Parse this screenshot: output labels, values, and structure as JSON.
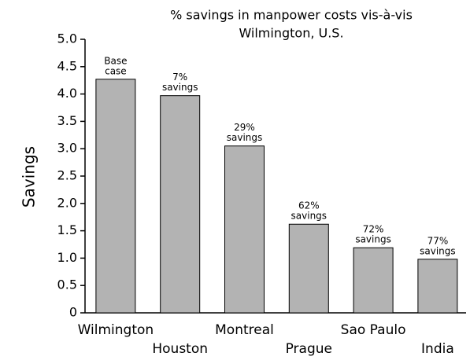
{
  "chart_data": {
    "type": "bar",
    "title": [
      "% savings in manpower costs vis-à-vis",
      "Wilmington, U.S."
    ],
    "y_label": "Savings",
    "categories": [
      "Wilmington",
      "Houston",
      "Montreal",
      "Prague",
      "Sao Paulo",
      "India"
    ],
    "values": [
      4.27,
      3.97,
      3.05,
      1.62,
      1.19,
      0.98
    ],
    "annotations": [
      [
        "Base",
        "case"
      ],
      [
        "7%",
        "savings"
      ],
      [
        "29%",
        "savings"
      ],
      [
        "62%",
        "savings"
      ],
      [
        "72%",
        "savings"
      ],
      [
        "77%",
        "savings"
      ]
    ],
    "color": "#b3b3b3",
    "ylim": [
      0,
      5
    ],
    "yticks": [
      0,
      0.5,
      {
        "value": 1,
        "label": "1.0"
      },
      1.5,
      {
        "value": 2,
        "label": "2.0"
      },
      2.5,
      {
        "value": 3,
        "label": "3.0"
      },
      3.5,
      {
        "value": 4,
        "label": "4.0"
      },
      4.5,
      {
        "value": 5,
        "label": "5.0"
      }
    ],
    "grid": false
  }
}
